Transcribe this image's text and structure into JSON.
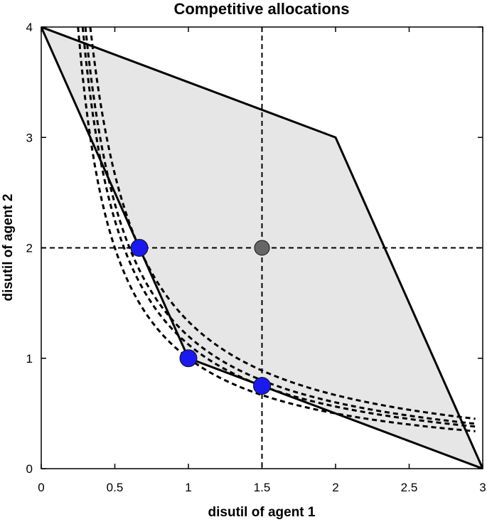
{
  "chart_data": {
    "type": "scatter",
    "title": "Competitive allocations",
    "xlabel": "disutil of agent 1",
    "ylabel": "disutil of agent 2",
    "xlim": [
      0,
      3
    ],
    "ylim": [
      0,
      4
    ],
    "xticks": [
      "0",
      "0.5",
      "1",
      "1.5",
      "2",
      "2.5",
      "3"
    ],
    "xtick_values": [
      0,
      0.5,
      1,
      1.5,
      2,
      2.5,
      3
    ],
    "yticks": [
      "0",
      "1",
      "2",
      "3",
      "4"
    ],
    "ytick_values": [
      0,
      1,
      2,
      3,
      4
    ],
    "grid": false,
    "feasible_region": {
      "fill": "#e6e6e6",
      "vertices": [
        [
          0,
          4
        ],
        [
          2,
          3
        ],
        [
          3,
          0
        ],
        [
          2,
          0.5
        ],
        [
          1,
          1
        ],
        [
          0.6667,
          2
        ]
      ]
    },
    "reference_lines": {
      "x": 1.5,
      "y": 2
    },
    "indifference_curves": [
      {
        "k": 1.333,
        "x_range": [
          0.3333,
          2.95
        ]
      },
      {
        "k": 1.2,
        "x_range": [
          0.3,
          2.95
        ]
      },
      {
        "k": 1.125,
        "x_range": [
          0.2813,
          2.95
        ]
      },
      {
        "k": 1.0,
        "x_range": [
          0.25,
          2.95
        ]
      }
    ],
    "points": [
      {
        "x": 0.6667,
        "y": 2,
        "color": "#1a1aee"
      },
      {
        "x": 1,
        "y": 1,
        "color": "#1a1aee"
      },
      {
        "x": 1.5,
        "y": 0.75,
        "color": "#1a1aee"
      },
      {
        "x": 1.5,
        "y": 2,
        "color": "#666666"
      }
    ]
  }
}
